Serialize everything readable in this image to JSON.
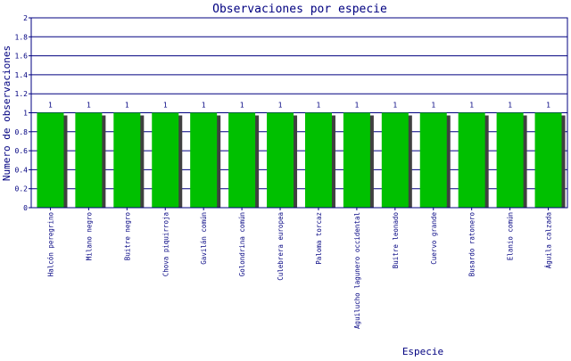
{
  "chart_data": {
    "type": "bar",
    "title": "Observaciones por especie",
    "xlabel": "Especie",
    "ylabel": "Numero de observaciones",
    "ylim": [
      0,
      2
    ],
    "yticks": [
      "0",
      "0.2",
      "0.4",
      "0.6",
      "0.8",
      "1",
      "1.2",
      "1.4",
      "1.6",
      "1.8",
      "2"
    ],
    "grid": true,
    "categories": [
      "Halcón peregrino",
      "Milano negro",
      "Buitre negro",
      "Chova piquirroja",
      "Gavilán común",
      "Golondrina común",
      "Culebrera europea",
      "Paloma torcaz",
      "Aguilucho lagunero occidental",
      "Buitre leonado",
      "Cuervo grande",
      "Busardo ratonero",
      "Elanio común",
      "Águila calzada"
    ],
    "values": [
      1,
      1,
      1,
      1,
      1,
      1,
      1,
      1,
      1,
      1,
      1,
      1,
      1,
      1
    ],
    "data_labels": [
      "1",
      "1",
      "1",
      "1",
      "1",
      "1",
      "1",
      "1",
      "1",
      "1",
      "1",
      "1",
      "1",
      "1"
    ],
    "colors": {
      "bar": "#00c000",
      "bar_shadow": "#404040",
      "grid": "#000080",
      "axis": "#000080",
      "text": "#000080"
    }
  }
}
